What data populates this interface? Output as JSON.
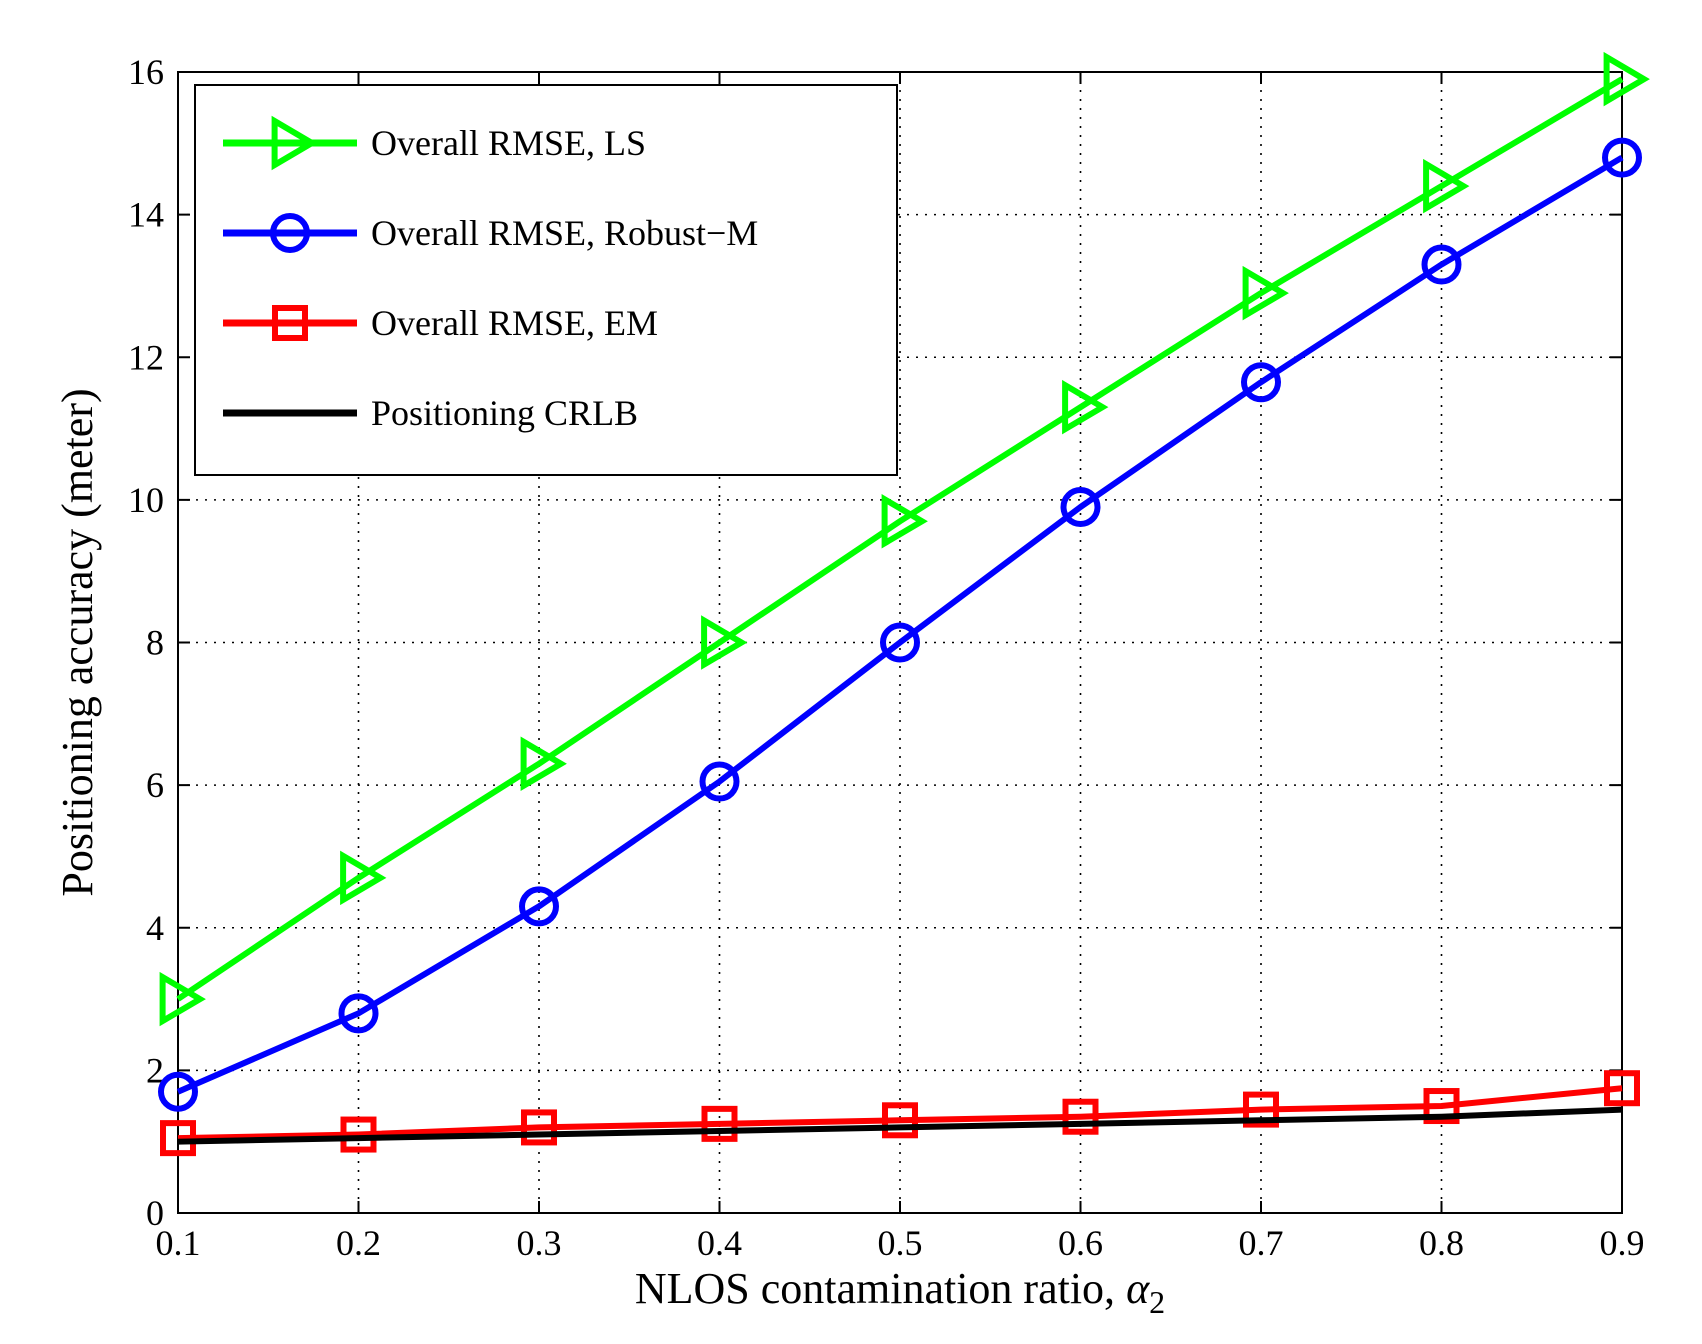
{
  "chart_data": {
    "type": "line",
    "xlabel": "NLOS contamination ratio, ",
    "xlabel_math": "α",
    "xlabel_sub": "2",
    "ylabel": "Positioning accuracy (meter)",
    "x": [
      0.1,
      0.2,
      0.3,
      0.4,
      0.5,
      0.6,
      0.7,
      0.8,
      0.9
    ],
    "xlim": [
      0.1,
      0.9
    ],
    "ylim": [
      0,
      16
    ],
    "xticks": [
      "0.1",
      "0.2",
      "0.3",
      "0.4",
      "0.5",
      "0.6",
      "0.7",
      "0.8",
      "0.9"
    ],
    "yticks": [
      "0",
      "2",
      "4",
      "6",
      "8",
      "10",
      "12",
      "14",
      "16"
    ],
    "grid": true,
    "legend_position": "top-left",
    "series": [
      {
        "name": "Overall RMSE, LS",
        "color": "#00ff00",
        "marker": "triangle-right",
        "values": [
          3.0,
          4.7,
          6.3,
          8.0,
          9.7,
          11.3,
          12.9,
          14.4,
          15.9
        ]
      },
      {
        "name": "Overall RMSE, Robust−M",
        "color": "#0000ff",
        "marker": "circle",
        "values": [
          1.7,
          2.8,
          4.3,
          6.05,
          8.0,
          9.9,
          11.65,
          13.3,
          14.8
        ]
      },
      {
        "name": "Overall RMSE, EM",
        "color": "#ff0000",
        "marker": "square",
        "values": [
          1.05,
          1.1,
          1.2,
          1.25,
          1.3,
          1.35,
          1.45,
          1.5,
          1.75
        ]
      },
      {
        "name": "Positioning CRLB",
        "color": "#000000",
        "marker": "none",
        "values": [
          1.0,
          1.05,
          1.1,
          1.15,
          1.2,
          1.25,
          1.3,
          1.35,
          1.45
        ]
      }
    ]
  }
}
